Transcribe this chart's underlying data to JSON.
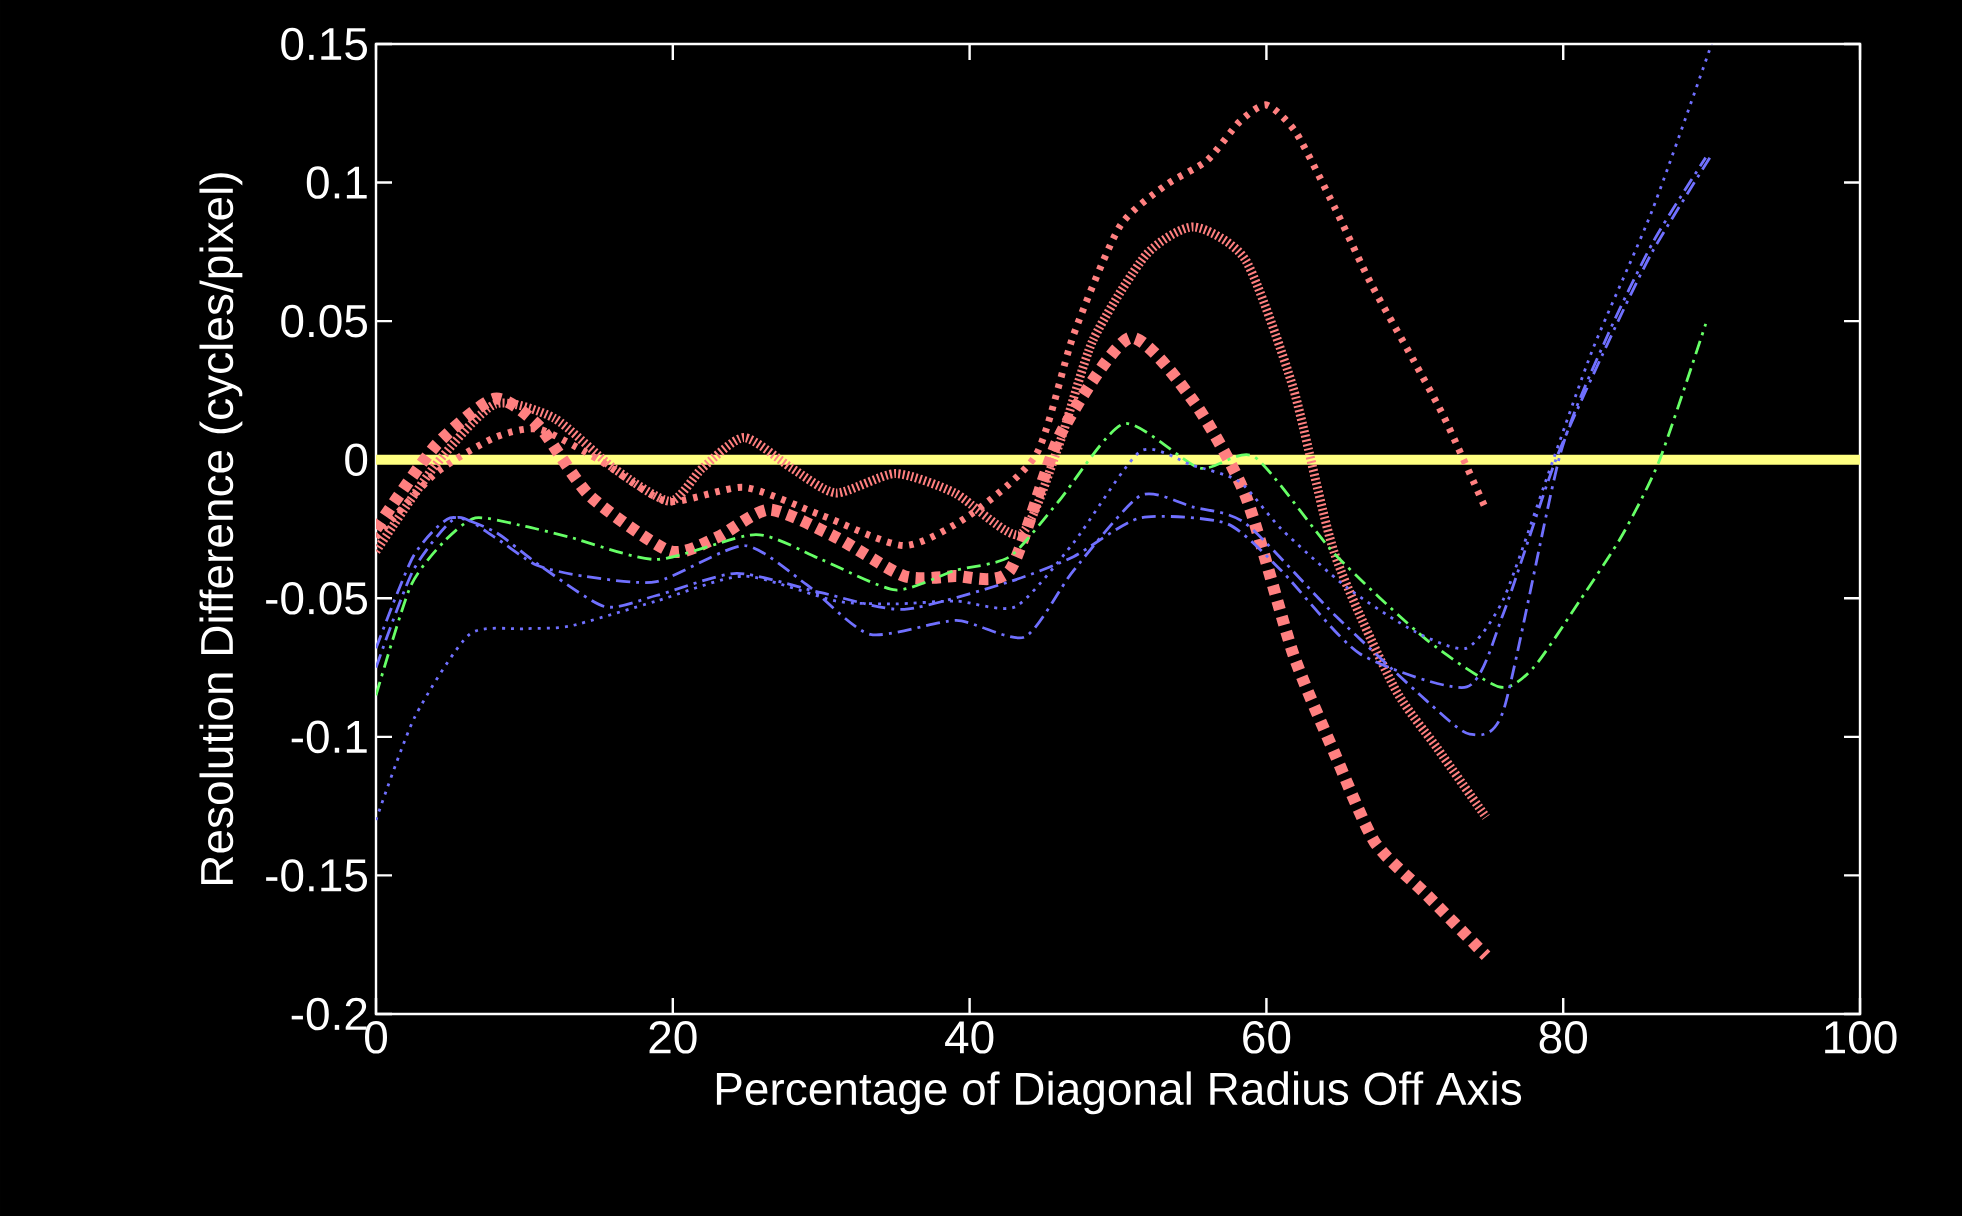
{
  "chart_data": {
    "type": "line",
    "xlabel": "Percentage of Diagonal Radius Off Axis",
    "ylabel": "Resolution Difference (cycles/pixel)",
    "xlim": [
      0,
      100
    ],
    "ylim": [
      -0.2,
      0.15
    ],
    "xticks": [
      0,
      20,
      40,
      60,
      80,
      100
    ],
    "yticks": [
      -0.2,
      -0.15,
      -0.1,
      -0.05,
      0,
      0.05,
      0.1,
      0.15
    ],
    "ref_lines": [
      {
        "axis": "y",
        "value": 0,
        "color": "#ffff80"
      }
    ],
    "series": [
      {
        "color": "#ff8080",
        "line_style": "dotted",
        "x": [
          0,
          4,
          8,
          11,
          15,
          19.6,
          24.8,
          30,
          35.6,
          40,
          44.5,
          47,
          50.1,
          53.2,
          56,
          58.2,
          60,
          62,
          64.6,
          67,
          69.9,
          72,
          74.8
        ],
        "values": [
          -0.028,
          -0.005,
          0.008,
          0.011,
          0.0,
          -0.015,
          -0.01,
          -0.02,
          -0.031,
          -0.02,
          0.002,
          0.045,
          0.084,
          0.099,
          0.108,
          0.122,
          0.128,
          0.118,
          0.091,
          0.064,
          0.036,
          0.015,
          -0.018
        ]
      },
      {
        "color": "#ff8080",
        "line_style": "dotted",
        "x": [
          0,
          4,
          8,
          12,
          16,
          19.8,
          22,
          24.8,
          28,
          31,
          35,
          39,
          43.4,
          46,
          48.3,
          51.9,
          55.1,
          58.6,
          61.8,
          64.6,
          68.6,
          71.5,
          74.8
        ],
        "values": [
          -0.033,
          -0.002,
          0.02,
          0.015,
          -0.003,
          -0.015,
          -0.003,
          0.008,
          -0.003,
          -0.012,
          -0.005,
          -0.012,
          -0.027,
          0.005,
          0.043,
          0.074,
          0.084,
          0.072,
          0.026,
          -0.034,
          -0.082,
          -0.104,
          -0.129
        ]
      },
      {
        "color": "#ff8080",
        "line_style": "dotted",
        "x": [
          0,
          4,
          8,
          11,
          14.4,
          19.8,
          23,
          26.5,
          31,
          35.6,
          39,
          42.7,
          46.1,
          50.8,
          55.1,
          58.6,
          61.8,
          64.6,
          67.3,
          70.8,
          74.8
        ],
        "values": [
          -0.025,
          0.005,
          0.022,
          0.012,
          -0.013,
          -0.033,
          -0.028,
          -0.018,
          -0.028,
          -0.042,
          -0.042,
          -0.04,
          0.009,
          0.044,
          0.021,
          -0.013,
          -0.07,
          -0.106,
          -0.138,
          -0.157,
          -0.179
        ]
      },
      {
        "color": "#66ff66",
        "line_style": "dashdot",
        "x": [
          0,
          2.3,
          4.5,
          6.7,
          10,
          13.1,
          18.9,
          25.6,
          30,
          35,
          39,
          42.7,
          46,
          50.4,
          55.5,
          59.2,
          64.6,
          70.8,
          75.7,
          78,
          81.1,
          84,
          86.5,
          89.6
        ],
        "values": [
          -0.085,
          -0.046,
          -0.03,
          -0.021,
          -0.024,
          -0.028,
          -0.036,
          -0.027,
          -0.036,
          -0.047,
          -0.04,
          -0.035,
          -0.015,
          0.013,
          -0.003,
          0.001,
          -0.034,
          -0.065,
          -0.082,
          -0.075,
          -0.051,
          -0.027,
          0.0,
          0.049
        ]
      },
      {
        "color": "#7070ff",
        "line_style": "dashdot",
        "x": [
          0,
          2.5,
          5.4,
          8,
          10.8,
          14,
          18.9,
          24.8,
          29,
          33.3,
          39.1,
          43.7,
          47,
          51.5,
          55,
          58.6,
          64.6,
          70.8,
          73.7,
          76,
          79.8,
          83,
          86.1,
          89.6
        ],
        "values": [
          -0.075,
          -0.04,
          -0.021,
          -0.028,
          -0.038,
          -0.042,
          -0.044,
          -0.031,
          -0.045,
          -0.063,
          -0.058,
          -0.064,
          -0.04,
          -0.013,
          -0.017,
          -0.023,
          -0.056,
          -0.087,
          -0.099,
          -0.09,
          0.002,
          0.045,
          0.079,
          0.109
        ]
      },
      {
        "color": "#7070ff",
        "line_style": "dashdot",
        "x": [
          0,
          2.5,
          5,
          8,
          11,
          15.4,
          18.9,
          24.3,
          30,
          35.6,
          42.7,
          47,
          51.5,
          57.3,
          61,
          66.3,
          73.5,
          76,
          79.5,
          83,
          86,
          90
        ],
        "values": [
          -0.068,
          -0.035,
          -0.021,
          -0.026,
          -0.038,
          -0.053,
          -0.049,
          -0.041,
          -0.048,
          -0.054,
          -0.044,
          -0.035,
          -0.021,
          -0.023,
          -0.04,
          -0.07,
          -0.082,
          -0.055,
          0.0,
          0.042,
          0.075,
          0.11
        ]
      },
      {
        "color": "#7070ff",
        "line_style": "dotted",
        "x": [
          0,
          2.6,
          6.3,
          10,
          13.1,
          18.9,
          24.8,
          31,
          35,
          39.1,
          43.1,
          47,
          51.5,
          55,
          58.2,
          61,
          65.4,
          70,
          73.5,
          76,
          79,
          82,
          86,
          90
        ],
        "values": [
          -0.13,
          -0.093,
          -0.063,
          -0.061,
          -0.06,
          -0.051,
          -0.042,
          -0.051,
          -0.052,
          -0.051,
          -0.053,
          -0.03,
          0.003,
          -0.002,
          -0.008,
          -0.025,
          -0.046,
          -0.062,
          -0.068,
          -0.05,
          -0.005,
          0.04,
          0.09,
          0.15
        ]
      }
    ]
  }
}
